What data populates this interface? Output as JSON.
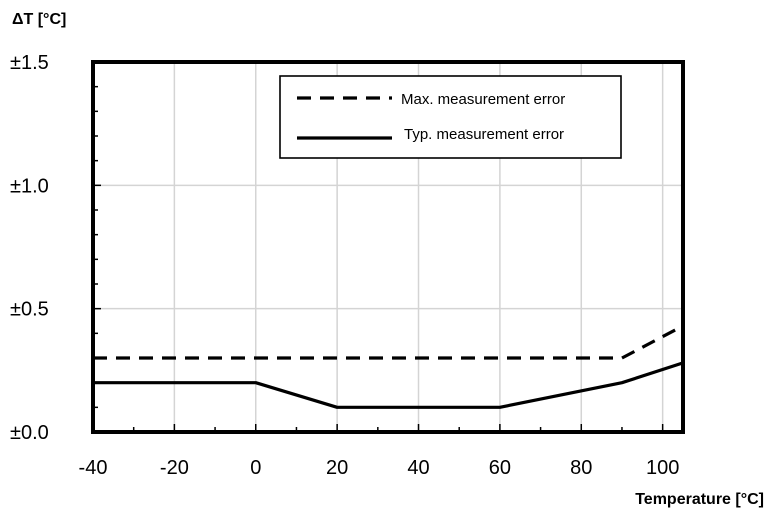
{
  "chart_data": {
    "type": "line",
    "title": "",
    "xlabel": "Temperature [°C]",
    "ylabel": "ΔT [°C]",
    "xlim": [
      -40,
      105
    ],
    "ylim": [
      0,
      1.5
    ],
    "x_ticks": [
      -40,
      -20,
      0,
      20,
      40,
      60,
      80,
      100
    ],
    "x_tick_labels": [
      "-40",
      "-20",
      "0",
      "20",
      "40",
      "60",
      "80",
      "100"
    ],
    "y_ticks": [
      0,
      0.5,
      1.0,
      1.5
    ],
    "y_tick_labels": [
      "±0.0",
      "±0.5",
      "±1.0",
      "±1.5"
    ],
    "grid": true,
    "legend_position": "top-right",
    "series": [
      {
        "name": "Max. measurement error",
        "style": "dashed",
        "color": "#000000",
        "x": [
          -40,
          90,
          105
        ],
        "y": [
          0.3,
          0.3,
          0.43
        ]
      },
      {
        "name": "Typ. measurement error",
        "style": "solid",
        "color": "#000000",
        "x": [
          -40,
          0,
          20,
          60,
          90,
          105
        ],
        "y": [
          0.2,
          0.2,
          0.1,
          0.1,
          0.2,
          0.28
        ]
      }
    ]
  }
}
